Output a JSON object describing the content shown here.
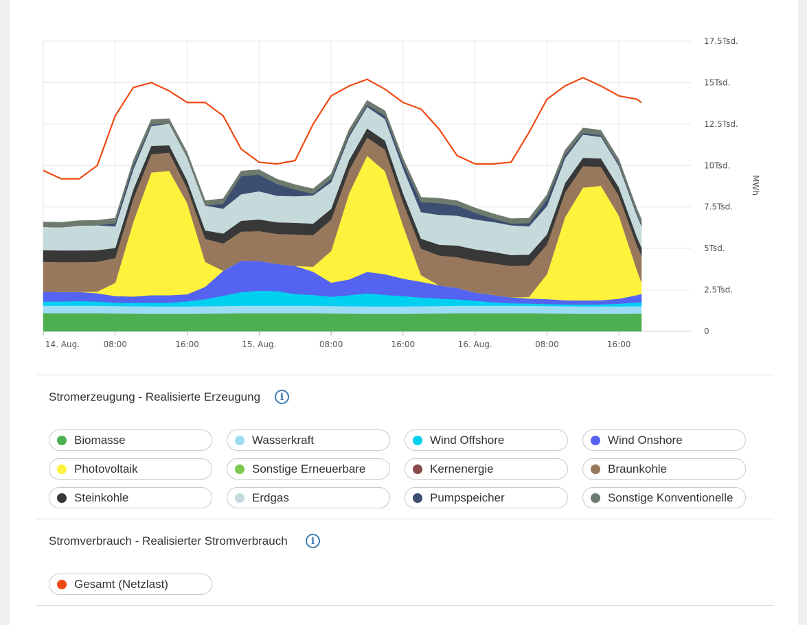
{
  "chart_data": {
    "type": "area",
    "stacked": true,
    "ylabel": "MWh",
    "ylim": [
      0,
      17500
    ],
    "grid": true,
    "y_ticks": [
      {
        "value": 0,
        "label": "0"
      },
      {
        "value": 2500,
        "label": "2.5Tsd."
      },
      {
        "value": 5000,
        "label": "5Tsd."
      },
      {
        "value": 7500,
        "label": "7.5Tsd."
      },
      {
        "value": 10000,
        "label": "10Tsd."
      },
      {
        "value": 12500,
        "label": "12.5Tsd."
      },
      {
        "value": 15000,
        "label": "15Tsd."
      },
      {
        "value": 17500,
        "label": "17.5Tsd."
      }
    ],
    "x_unit": "hours since 14. Aug. 00:00",
    "xlim": [
      0,
      72
    ],
    "x_ticks": [
      {
        "x": 0,
        "label": "14. Aug."
      },
      {
        "x": 8,
        "label": "08:00"
      },
      {
        "x": 16,
        "label": "16:00"
      },
      {
        "x": 24,
        "label": "15. Aug."
      },
      {
        "x": 32,
        "label": "08:00"
      },
      {
        "x": 40,
        "label": "16:00"
      },
      {
        "x": 48,
        "label": "16. Aug."
      },
      {
        "x": 56,
        "label": "08:00"
      },
      {
        "x": 64,
        "label": "16:00"
      }
    ],
    "x": [
      0,
      2,
      4,
      6,
      8,
      10,
      12,
      14,
      16,
      18,
      20,
      22,
      24,
      26,
      28,
      30,
      32,
      34,
      36,
      38,
      40,
      42,
      44,
      46,
      48,
      50,
      52,
      54,
      56,
      58,
      60,
      62,
      64,
      66,
      66.5
    ],
    "series": [
      {
        "name": "Biomasse",
        "color": "#4caf50",
        "values": [
          1100,
          1100,
          1100,
          1100,
          1080,
          1070,
          1060,
          1060,
          1060,
          1070,
          1080,
          1100,
          1100,
          1100,
          1100,
          1100,
          1080,
          1070,
          1060,
          1060,
          1060,
          1070,
          1080,
          1100,
          1100,
          1100,
          1100,
          1100,
          1080,
          1070,
          1060,
          1060,
          1060,
          1070,
          1070
        ]
      },
      {
        "name": "Wasserkraft",
        "color": "#9ddcf5",
        "values": [
          450,
          450,
          450,
          450,
          450,
          450,
          450,
          450,
          450,
          450,
          450,
          450,
          450,
          450,
          450,
          450,
          450,
          450,
          450,
          450,
          450,
          450,
          450,
          450,
          450,
          450,
          450,
          450,
          450,
          450,
          450,
          450,
          450,
          450,
          450
        ]
      },
      {
        "name": "Wind Offshore",
        "color": "#00d0f0",
        "values": [
          250,
          250,
          280,
          250,
          200,
          200,
          220,
          220,
          300,
          420,
          620,
          820,
          900,
          880,
          700,
          650,
          560,
          660,
          780,
          690,
          620,
          520,
          450,
          380,
          300,
          200,
          150,
          130,
          120,
          110,
          110,
          120,
          160,
          220,
          240
        ]
      },
      {
        "name": "Wind Onshore",
        "color": "#5564f0",
        "values": [
          600,
          580,
          550,
          500,
          400,
          380,
          450,
          450,
          430,
          750,
          1500,
          1900,
          1800,
          1650,
          1700,
          1400,
          850,
          950,
          1300,
          1250,
          1050,
          950,
          800,
          700,
          500,
          450,
          350,
          300,
          300,
          250,
          250,
          250,
          300,
          450,
          500
        ]
      },
      {
        "name": "Photovoltaik",
        "color": "#fff23d",
        "values": [
          0,
          0,
          0,
          100,
          800,
          4500,
          7400,
          7500,
          5500,
          1500,
          0,
          0,
          0,
          0,
          0,
          300,
          1900,
          5200,
          7000,
          6200,
          3200,
          400,
          0,
          0,
          0,
          0,
          0,
          100,
          1500,
          5000,
          6800,
          6900,
          5000,
          1500,
          700
        ]
      },
      {
        "name": "Braunkohle",
        "color": "#98785d",
        "values": [
          1800,
          1800,
          1800,
          1800,
          1500,
          1400,
          1100,
          1100,
          900,
          1400,
          1650,
          1750,
          1800,
          1800,
          1900,
          1900,
          1900,
          1400,
          1100,
          1300,
          1400,
          1600,
          1800,
          1850,
          1900,
          1900,
          1900,
          1900,
          1800,
          1500,
          1300,
          1150,
          1200,
          1500,
          1600
        ]
      },
      {
        "name": "Steinkohle",
        "color": "#383838",
        "values": [
          700,
          700,
          700,
          700,
          600,
          550,
          500,
          450,
          450,
          500,
          600,
          650,
          700,
          700,
          700,
          700,
          650,
          600,
          550,
          550,
          550,
          600,
          650,
          700,
          700,
          700,
          650,
          650,
          600,
          550,
          500,
          500,
          500,
          500,
          500
        ]
      },
      {
        "name": "Erdgas",
        "color": "#c6dadb",
        "values": [
          1400,
          1400,
          1500,
          1500,
          1300,
          1200,
          1200,
          1300,
          1400,
          1500,
          1500,
          1600,
          1700,
          1600,
          1600,
          1700,
          1600,
          1400,
          1300,
          1300,
          1500,
          1600,
          1800,
          1800,
          1800,
          1800,
          1800,
          1700,
          1700,
          1500,
          1400,
          1300,
          1300,
          1300,
          1300
        ]
      },
      {
        "name": "Pumpspeicher",
        "color": "#3c4e71",
        "values": [
          0,
          0,
          0,
          0,
          200,
          250,
          100,
          0,
          0,
          0,
          300,
          1100,
          1000,
          700,
          400,
          100,
          200,
          150,
          100,
          200,
          300,
          600,
          700,
          600,
          400,
          200,
          100,
          200,
          400,
          200,
          100,
          100,
          100,
          100,
          100
        ]
      },
      {
        "name": "Sonstige Konventionelle",
        "color": "#6e7a6e",
        "values": [
          300,
          300,
          300,
          300,
          300,
          300,
          300,
          300,
          300,
          300,
          300,
          300,
          300,
          300,
          300,
          300,
          300,
          300,
          300,
          300,
          300,
          300,
          300,
          300,
          300,
          300,
          300,
          300,
          300,
          300,
          300,
          300,
          300,
          300,
          300
        ]
      }
    ],
    "line_series": [
      {
        "name": "Gesamt (Netzlast)",
        "color": "#f04a14",
        "x": [
          0,
          2,
          4,
          6,
          8,
          10,
          12,
          14,
          16,
          18,
          20,
          22,
          24,
          26,
          28,
          30,
          32,
          34,
          36,
          38,
          40,
          42,
          44,
          46,
          48,
          50,
          52,
          54,
          56,
          58,
          60,
          62,
          64,
          66,
          66.5
        ],
        "values": [
          9700,
          9200,
          9200,
          10000,
          13000,
          14700,
          15000,
          14500,
          13800,
          13800,
          13000,
          11000,
          10200,
          10100,
          10300,
          12500,
          14200,
          14800,
          15200,
          14600,
          13800,
          13400,
          12200,
          10600,
          10100,
          10100,
          10200,
          12000,
          14000,
          14800,
          15300,
          14800,
          14200,
          14000,
          13800
        ]
      }
    ]
  },
  "sections": [
    {
      "title": "Stromerzeugung - Realisierte Erzeugung",
      "items": [
        {
          "label": "Biomasse",
          "color": "#4caf50"
        },
        {
          "label": "Wasserkraft",
          "color": "#9ddcf5"
        },
        {
          "label": "Wind Offshore",
          "color": "#00d0f0"
        },
        {
          "label": "Wind Onshore",
          "color": "#5564f0"
        },
        {
          "label": "Photovoltaik",
          "color": "#fff23d"
        },
        {
          "label": "Sonstige Erneuerbare",
          "color": "#7ec850"
        },
        {
          "label": "Kernenergie",
          "color": "#8a4a4a"
        },
        {
          "label": "Braunkohle",
          "color": "#98785d"
        },
        {
          "label": "Steinkohle",
          "color": "#383838"
        },
        {
          "label": "Erdgas",
          "color": "#c6dadb"
        },
        {
          "label": "Pumpspeicher",
          "color": "#3c4e71"
        },
        {
          "label": "Sonstige Konventionelle",
          "color": "#6e7a6e"
        }
      ]
    },
    {
      "title": "Stromverbrauch - Realisierter Stromverbrauch",
      "items": [
        {
          "label": "Gesamt (Netzlast)",
          "color": "#f04a14"
        }
      ]
    }
  ],
  "icons": {
    "info": "info-icon",
    "info_glyph": "i"
  }
}
